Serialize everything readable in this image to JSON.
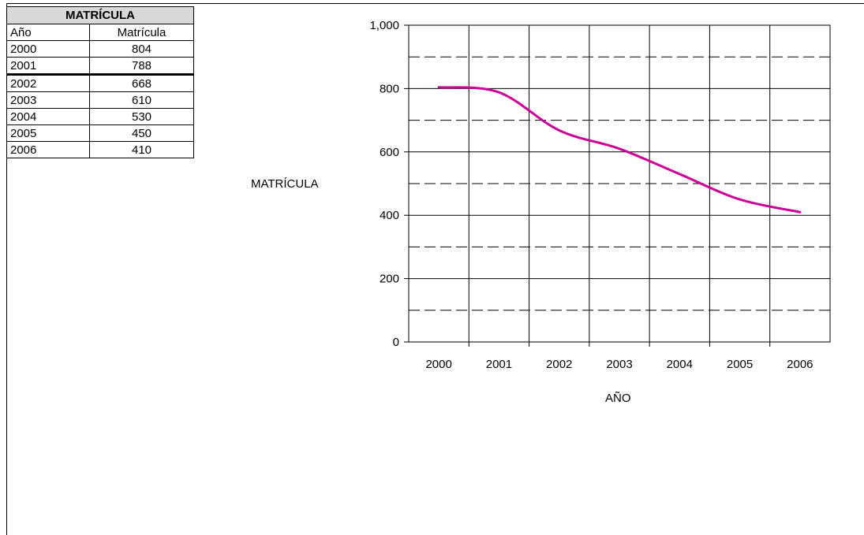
{
  "table": {
    "title": "MATRÍCULA",
    "col_year": "Año",
    "col_value": "Matrícula",
    "rows": [
      {
        "year": "2000",
        "value": "804"
      },
      {
        "year": "2001",
        "value": "788"
      },
      {
        "year": "2002",
        "value": "668"
      },
      {
        "year": "2003",
        "value": "610"
      },
      {
        "year": "2004",
        "value": "530"
      },
      {
        "year": "2005",
        "value": "450"
      },
      {
        "year": "2006",
        "value": "410"
      }
    ]
  },
  "chart_data": {
    "type": "line",
    "title": "",
    "xlabel": "AÑO",
    "ylabel": "MATRÍCULA",
    "categories": [
      "2000",
      "2001",
      "2002",
      "2003",
      "2004",
      "2005",
      "2006"
    ],
    "series": [
      {
        "values": [
          804,
          788,
          668,
          610,
          530,
          450,
          410
        ],
        "color": "#cc0099"
      }
    ],
    "ylim": [
      0,
      1000
    ],
    "yticks": [
      0,
      200,
      400,
      600,
      800,
      1000
    ],
    "ytick_labels": [
      "0",
      "200",
      "400",
      "600",
      "800",
      "1,000"
    ],
    "grid": true,
    "legend": "none"
  }
}
